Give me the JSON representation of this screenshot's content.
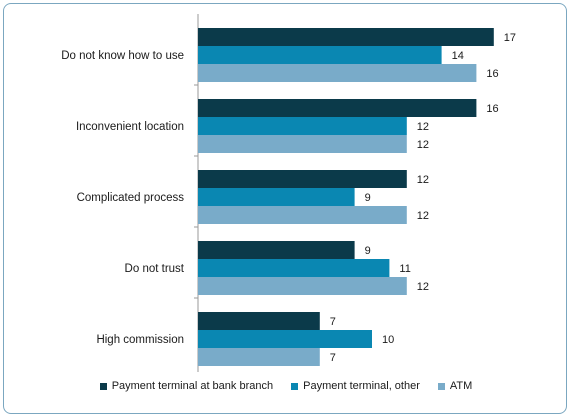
{
  "chart_data": {
    "type": "bar",
    "orientation": "horizontal",
    "categories": [
      "Do not know how to use",
      "Inconvenient location",
      "Complicated process",
      "Do not trust",
      "High commission"
    ],
    "series": [
      {
        "name": "Payment terminal at bank branch",
        "values": [
          17,
          16,
          12,
          9,
          7
        ],
        "color": "#0b3a4a"
      },
      {
        "name": "Payment terminal, other",
        "values": [
          14,
          12,
          9,
          11,
          10
        ],
        "color": "#0a87b2"
      },
      {
        "name": "ATM",
        "values": [
          16,
          12,
          12,
          12,
          7
        ],
        "color": "#79abc9"
      }
    ],
    "xlim": [
      0,
      18
    ],
    "grid": false,
    "legend_position": "bottom"
  }
}
